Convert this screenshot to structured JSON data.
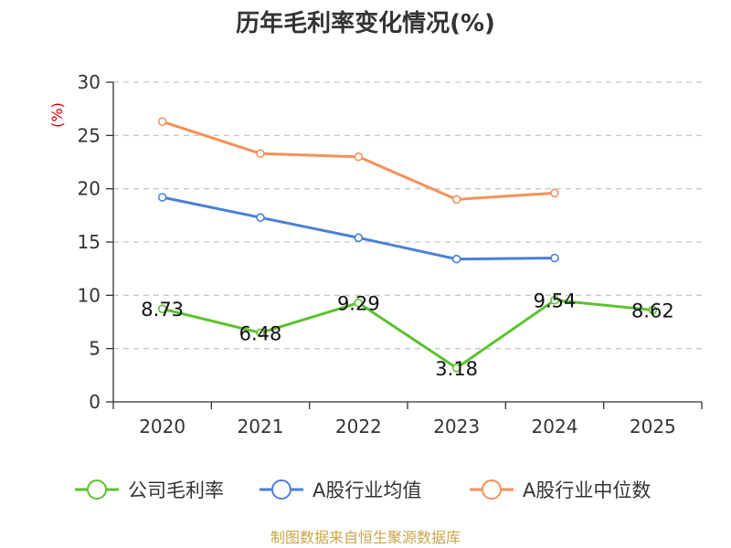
{
  "chart_data": {
    "type": "line",
    "title": "历年毛利率变化情况(%)",
    "ylabel": "(%)",
    "xlabel": "",
    "categories": [
      "2020",
      "2021",
      "2022",
      "2023",
      "2024",
      "2025"
    ],
    "ylim": [
      0,
      30
    ],
    "yticks": [
      0,
      5,
      10,
      15,
      20,
      25,
      30
    ],
    "grid": true,
    "legend_position": "bottom",
    "series": [
      {
        "name": "公司毛利率",
        "color": "#5cc12e",
        "values": [
          8.73,
          6.48,
          9.29,
          3.18,
          9.54,
          8.62
        ],
        "labels": [
          "8.73",
          "6.48",
          "9.29",
          "3.18",
          "9.54",
          "8.62"
        ]
      },
      {
        "name": "A股行业均值",
        "color": "#4a7fd6",
        "values": [
          19.2,
          17.3,
          15.4,
          13.4,
          13.5,
          null
        ]
      },
      {
        "name": "A股行业中位数",
        "color": "#f5915a",
        "values": [
          26.3,
          23.3,
          23.0,
          19.0,
          19.6,
          null
        ]
      }
    ],
    "source": "制图数据来自恒生聚源数据库"
  }
}
